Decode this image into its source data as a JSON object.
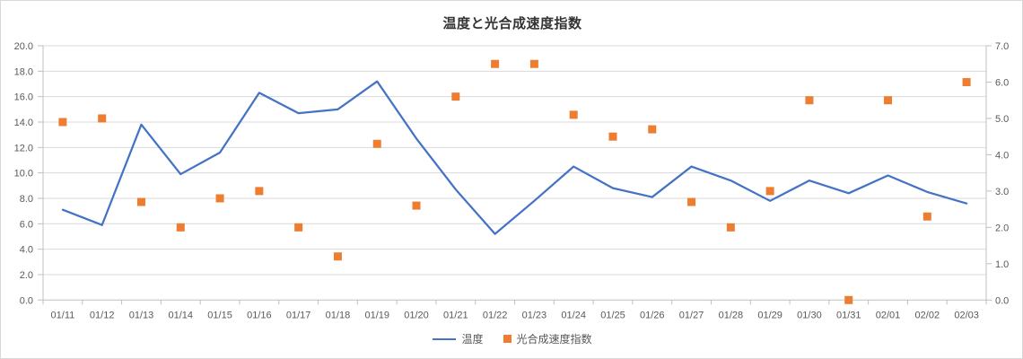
{
  "chart_data": {
    "type": "line+scatter combo (dual axis)",
    "title": "温度と光合成速度指数",
    "categories": [
      "01/11",
      "01/12",
      "01/13",
      "01/14",
      "01/15",
      "01/16",
      "01/17",
      "01/18",
      "01/19",
      "01/20",
      "01/21",
      "01/22",
      "01/23",
      "01/24",
      "01/25",
      "01/26",
      "01/27",
      "01/28",
      "01/29",
      "01/30",
      "01/31",
      "02/01",
      "02/02",
      "02/03"
    ],
    "series": [
      {
        "name": "温度",
        "type": "line",
        "axis": "left",
        "color": "#4472C4",
        "values": [
          7.1,
          5.9,
          13.8,
          9.9,
          11.6,
          16.3,
          14.7,
          15.0,
          17.2,
          12.7,
          8.7,
          5.2,
          7.8,
          10.5,
          8.8,
          8.1,
          10.5,
          9.4,
          7.8,
          9.4,
          8.4,
          9.8,
          8.5,
          7.6
        ]
      },
      {
        "name": "光合成速度指数",
        "type": "scatter",
        "axis": "right",
        "color": "#ED7D31",
        "values": [
          4.9,
          5.0,
          2.7,
          2.0,
          2.8,
          3.0,
          2.0,
          1.2,
          4.3,
          2.6,
          5.6,
          6.5,
          6.5,
          5.1,
          4.5,
          4.7,
          2.7,
          2.0,
          3.0,
          5.5,
          0.0,
          5.5,
          2.3,
          6.0
        ]
      }
    ],
    "left_axis": {
      "min": 0,
      "max": 20,
      "ticks": [
        "0.0",
        "2.0",
        "4.0",
        "6.0",
        "8.0",
        "10.0",
        "12.0",
        "14.0",
        "16.0",
        "18.0",
        "20.0"
      ]
    },
    "right_axis": {
      "min": 0,
      "max": 7,
      "ticks": [
        "0.0",
        "1.0",
        "2.0",
        "3.0",
        "4.0",
        "5.0",
        "6.0",
        "7.0"
      ]
    },
    "grid": "horizontal",
    "legend_position": "bottom",
    "colors": {
      "gridline": "#d9d9d9",
      "axis_line": "#bfbfbf",
      "tick_label": "#595959"
    }
  }
}
